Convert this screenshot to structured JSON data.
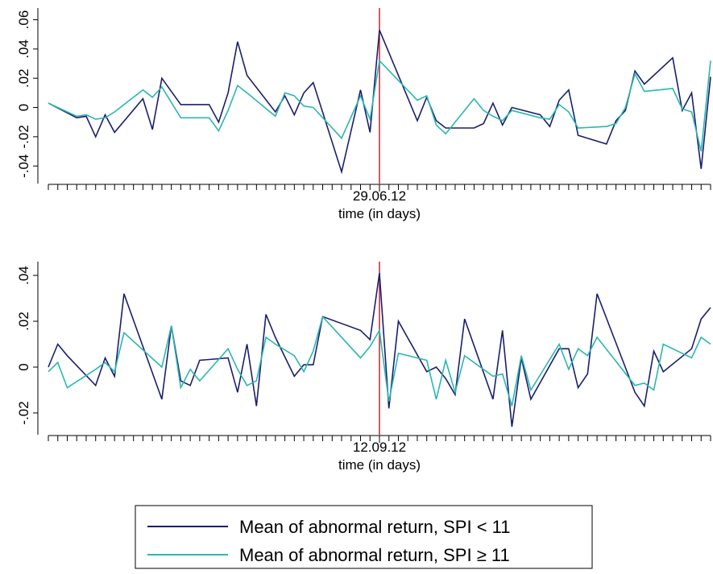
{
  "chart_data": [
    {
      "type": "line",
      "x_label": "time (in days)",
      "x": [
        -35,
        -32,
        -31,
        -30,
        -29,
        -28,
        -25,
        -24,
        -23,
        -21,
        -18,
        -17,
        -16,
        -15,
        -14,
        -11,
        -10,
        -9,
        -8,
        -7,
        -4,
        -2,
        -1,
        0,
        4,
        5,
        6,
        7,
        10,
        11,
        12,
        13,
        14,
        17,
        18,
        19,
        20,
        21,
        24,
        25,
        26,
        27,
        28,
        31,
        32,
        33,
        34,
        35
      ],
      "series": [
        {
          "name": "Mean of abnormal return, SPI < 11",
          "color": "#1a1f6e",
          "values": [
            0.003,
            -0.007,
            -0.006,
            -0.02,
            -0.005,
            -0.017,
            0.006,
            -0.015,
            0.02,
            0.002,
            0.002,
            -0.01,
            0.01,
            0.045,
            0.022,
            -0.003,
            0.008,
            -0.005,
            0.01,
            0.017,
            -0.044,
            0.012,
            -0.017,
            0.053,
            -0.009,
            0.007,
            -0.009,
            -0.014,
            -0.014,
            -0.011,
            0.003,
            -0.012,
            0,
            -0.005,
            -0.013,
            0.005,
            0.012,
            -0.019,
            -0.025,
            -0.009,
            -0.002,
            0.025,
            0.016,
            0.034,
            -0.002,
            0.01,
            -0.042,
            0.021
          ]
        },
        {
          "name": "Mean of abnormal return, SPI ≥ 11",
          "color": "#2ab7b0",
          "values": [
            0.003,
            -0.006,
            -0.005,
            -0.008,
            -0.007,
            -0.003,
            0.012,
            0.007,
            0.014,
            -0.007,
            -0.007,
            -0.016,
            -0.002,
            0.015,
            0.01,
            -0.006,
            0.01,
            0.008,
            0.001,
            0,
            -0.021,
            0.008,
            -0.008,
            0.032,
            0.005,
            0.008,
            -0.012,
            -0.018,
            0.006,
            -0.002,
            -0.006,
            -0.009,
            -0.002,
            -0.007,
            -0.008,
            0.002,
            -0.003,
            -0.014,
            -0.013,
            -0.011,
            0,
            0.023,
            0.011,
            0.013,
            -0.001,
            -0.003,
            -0.03,
            0.032
          ]
        }
      ],
      "xlim": [
        -35,
        35
      ],
      "xticks": [
        {
          "value": 0,
          "label": "29.06.12"
        }
      ],
      "xminor_ticks": [
        -35,
        -34,
        -33,
        -32,
        -31,
        -30,
        -29,
        -28,
        -27,
        -26,
        -25,
        -24,
        -23,
        -22,
        -21,
        -20,
        -19,
        -18,
        -17,
        -16,
        -15,
        -14,
        -13,
        -12,
        -11,
        -10,
        -9,
        -8,
        -7,
        -6,
        -5,
        -4,
        -3,
        -2,
        -1,
        0,
        1,
        2,
        3,
        4,
        5,
        6,
        7,
        8,
        9,
        10,
        11,
        12,
        13,
        14,
        15,
        16,
        17,
        18,
        19,
        20,
        21,
        22,
        23,
        24,
        25,
        26,
        27,
        28,
        29,
        30,
        31,
        32,
        33,
        34,
        35
      ],
      "ylim": [
        -0.052,
        0.068
      ],
      "yticks": [
        {
          "value": -0.04,
          "label": "-.04"
        },
        {
          "value": -0.02,
          "label": "-.02"
        },
        0,
        {
          "value": 0.02,
          "label": ".02"
        },
        {
          "value": 0.04,
          "label": ".04"
        },
        {
          "value": 0.06,
          "label": ".06"
        }
      ],
      "vline": 0,
      "vline_color": "#c0272d"
    },
    {
      "type": "line",
      "x_label": "time (in days)",
      "x": [
        -35,
        -34,
        -33,
        -30,
        -29,
        -28,
        -27,
        -23,
        -22,
        -21,
        -20,
        -19,
        -16,
        -15,
        -14,
        -13,
        -12,
        -11,
        -9,
        -8,
        -7,
        -6,
        -2,
        -1,
        0,
        1,
        2,
        5,
        6,
        7,
        8,
        9,
        12,
        13,
        14,
        15,
        16,
        19,
        20,
        21,
        22,
        23,
        27,
        28,
        29,
        30,
        33,
        34,
        35
      ],
      "series": [
        {
          "color": "#1a1f6e",
          "values": [
            0,
            0.01,
            0.005,
            -0.008,
            0.004,
            -0.004,
            0.032,
            -0.014,
            0.018,
            -0.006,
            -0.008,
            0.003,
            0.004,
            -0.011,
            0.01,
            -0.017,
            0.023,
            0.013,
            -0.004,
            0.001,
            0.001,
            0.022,
            0.016,
            0.012,
            0.041,
            -0.018,
            0.02,
            -0.002,
            0,
            -0.005,
            -0.012,
            0.021,
            -0.014,
            0.016,
            -0.026,
            0.004,
            -0.014,
            0.008,
            0.008,
            -0.009,
            -0.003,
            0.032,
            -0.011,
            -0.017,
            0.007,
            -0.002,
            0.008,
            0.021,
            0.026
          ]
        },
        {
          "color": "#2ab7b0",
          "values": [
            -0.002,
            0.002,
            -0.009,
            -0.001,
            0.002,
            -0.002,
            0.015,
            0,
            0.018,
            -0.009,
            -0.001,
            -0.006,
            0.008,
            -0.001,
            -0.008,
            -0.006,
            0.013,
            0.01,
            0.005,
            -0.002,
            0.007,
            0.022,
            0.004,
            0.009,
            0.016,
            -0.015,
            0.006,
            0.003,
            -0.014,
            0.003,
            -0.011,
            0.005,
            -0.004,
            -0.003,
            -0.017,
            0.005,
            -0.01,
            0.01,
            -0.001,
            0.008,
            0.005,
            0.013,
            -0.008,
            -0.007,
            -0.01,
            0.01,
            0.004,
            0.013,
            0.01
          ]
        }
      ],
      "xlim": [
        -35,
        35
      ],
      "xticks": [
        {
          "value": 0,
          "label": "12.09.12"
        }
      ],
      "xminor_ticks": [
        -35,
        -34,
        -33,
        -32,
        -31,
        -30,
        -29,
        -28,
        -27,
        -26,
        -25,
        -24,
        -23,
        -22,
        -21,
        -20,
        -19,
        -18,
        -17,
        -16,
        -15,
        -14,
        -13,
        -12,
        -11,
        -10,
        -9,
        -8,
        -7,
        -6,
        -5,
        -4,
        -3,
        -2,
        -1,
        0,
        1,
        2,
        3,
        4,
        5,
        6,
        7,
        8,
        9,
        10,
        11,
        12,
        13,
        14,
        15,
        16,
        17,
        18,
        19,
        20,
        21,
        22,
        23,
        24,
        25,
        26,
        27,
        28,
        29,
        30,
        31,
        32,
        33,
        34,
        35
      ],
      "ylim": [
        -0.0295,
        0.046
      ],
      "yticks": [
        {
          "value": -0.02,
          "label": "-.02"
        },
        0,
        {
          "value": 0.02,
          "label": ".02"
        },
        {
          "value": 0.04,
          "label": ".04"
        }
      ],
      "vline": 0,
      "vline_color": "#c0272d"
    }
  ]
}
